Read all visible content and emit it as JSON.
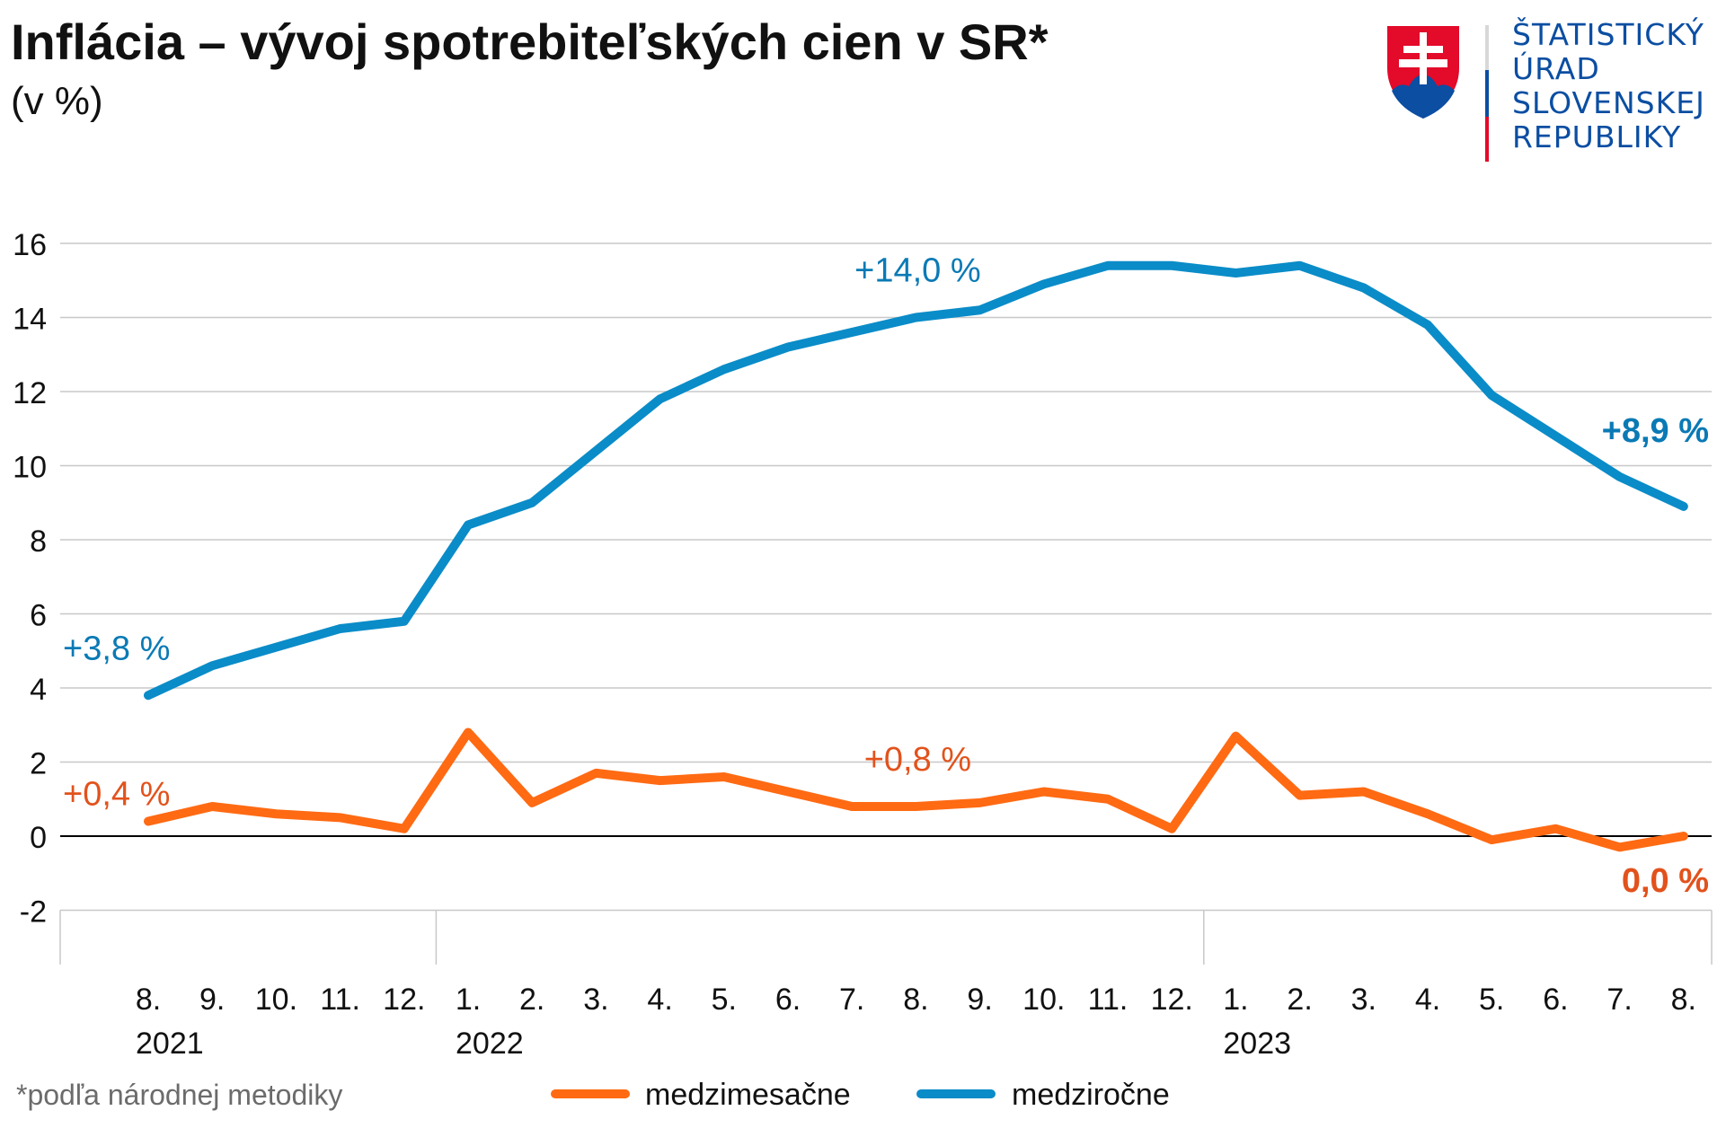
{
  "header": {
    "title": "Inflácia – vývoj spotrebiteľských cien v SR*",
    "subtitle": "(v %)"
  },
  "logo": {
    "lines": [
      "ŠTATISTICKÝ",
      "ÚRAD",
      "SLOVENSKEJ",
      "REPUBLIKY"
    ]
  },
  "footnote": "*podľa národnej metodiky",
  "colors": {
    "blue": "#0a8cc8",
    "orange": "#ff6a13",
    "orange_label": "#e2521c",
    "blue_label": "#0a7ab5"
  },
  "chart_data": {
    "type": "line",
    "title": "Inflácia – vývoj spotrebiteľských cien v SR*",
    "ylabel": "(v %)",
    "ylim": [
      -2,
      16
    ],
    "yticks": [
      "-2",
      "0",
      "2",
      "4",
      "6",
      "8",
      "10",
      "12",
      "14",
      "16"
    ],
    "categories": [
      "8.",
      "9.",
      "10.",
      "11.",
      "12.",
      "1.",
      "2.",
      "3.",
      "4.",
      "5.",
      "6.",
      "7.",
      "8.",
      "9.",
      "10.",
      "11.",
      "12.",
      "1.",
      "2.",
      "3.",
      "4.",
      "5.",
      "6.",
      "7.",
      "8."
    ],
    "years": [
      {
        "label": "2021",
        "index": 0
      },
      {
        "label": "2022",
        "index": 5
      },
      {
        "label": "2023",
        "index": 17
      }
    ],
    "grid": true,
    "legend_position": "bottom",
    "series": [
      {
        "name": "medzimesačne",
        "color": "#ff6a13",
        "values": [
          0.4,
          0.8,
          0.6,
          0.5,
          0.2,
          2.8,
          0.9,
          1.7,
          1.5,
          1.6,
          1.2,
          0.8,
          0.8,
          0.9,
          1.2,
          1.0,
          0.2,
          2.7,
          1.1,
          1.2,
          0.6,
          -0.1,
          0.2,
          -0.3,
          0.0
        ]
      },
      {
        "name": "medziročne",
        "color": "#0a8cc8",
        "values": [
          3.8,
          4.6,
          5.1,
          5.6,
          5.8,
          8.4,
          9.0,
          10.4,
          11.8,
          12.6,
          13.2,
          13.6,
          14.0,
          14.2,
          14.9,
          15.4,
          15.4,
          15.2,
          15.4,
          14.8,
          13.8,
          11.9,
          10.8,
          9.7,
          8.9
        ]
      }
    ],
    "annotations": [
      {
        "text": "+3,8 %",
        "series": 1,
        "index": 0,
        "bold": false
      },
      {
        "text": "+14,0 %",
        "series": 1,
        "index": 12,
        "bold": false
      },
      {
        "text": "+8,9 %",
        "series": 1,
        "index": 24,
        "bold": true
      },
      {
        "text": "+0,4 %",
        "series": 0,
        "index": 0,
        "bold": false
      },
      {
        "text": "+0,8 %",
        "series": 0,
        "index": 12,
        "bold": false
      },
      {
        "text": "0,0 %",
        "series": 0,
        "index": 24,
        "bold": true
      }
    ]
  }
}
